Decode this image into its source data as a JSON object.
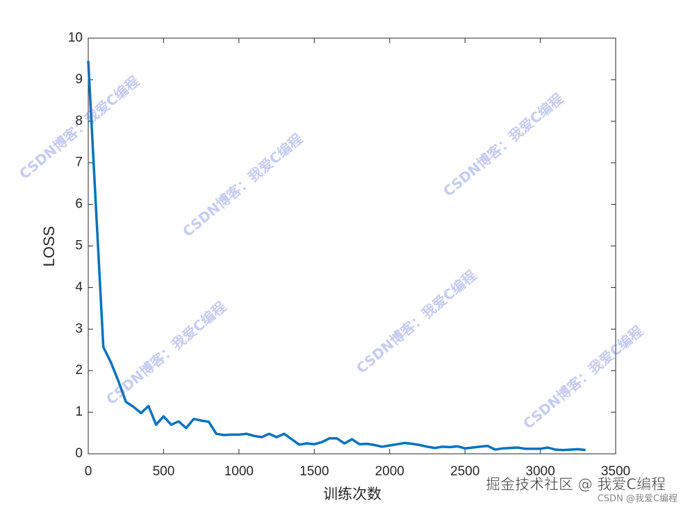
{
  "chart_data": {
    "type": "line",
    "xlabel": "训练次数",
    "ylabel": "LOSS",
    "x": [
      0,
      100,
      150,
      200,
      250,
      300,
      350,
      400,
      450,
      500,
      550,
      600,
      650,
      700,
      750,
      800,
      850,
      900,
      950,
      1000,
      1050,
      1100,
      1150,
      1200,
      1250,
      1300,
      1350,
      1400,
      1450,
      1500,
      1550,
      1600,
      1650,
      1700,
      1750,
      1800,
      1850,
      1900,
      1950,
      2000,
      2050,
      2100,
      2150,
      2200,
      2250,
      2300,
      2350,
      2400,
      2450,
      2500,
      2550,
      2600,
      2650,
      2700,
      2750,
      2800,
      2850,
      2900,
      2950,
      3000,
      3050,
      3100,
      3150,
      3200,
      3250,
      3300
    ],
    "values": [
      9.45,
      2.57,
      2.2,
      1.75,
      1.25,
      1.13,
      0.98,
      1.15,
      0.7,
      0.9,
      0.7,
      0.78,
      0.62,
      0.84,
      0.8,
      0.77,
      0.48,
      0.45,
      0.46,
      0.46,
      0.48,
      0.43,
      0.4,
      0.48,
      0.4,
      0.48,
      0.35,
      0.22,
      0.25,
      0.23,
      0.28,
      0.37,
      0.37,
      0.25,
      0.35,
      0.23,
      0.24,
      0.21,
      0.17,
      0.2,
      0.23,
      0.26,
      0.24,
      0.21,
      0.17,
      0.14,
      0.17,
      0.16,
      0.18,
      0.13,
      0.15,
      0.17,
      0.19,
      0.1,
      0.13,
      0.14,
      0.15,
      0.12,
      0.12,
      0.12,
      0.15,
      0.1,
      0.09,
      0.1,
      0.11,
      0.09
    ],
    "color": "#0072bd",
    "xlim": [
      0,
      3500
    ],
    "xticks": [
      0,
      500,
      1000,
      1500,
      2000,
      2500,
      3000,
      3500
    ],
    "ylim": [
      0,
      10
    ],
    "yticks": [
      0,
      1,
      2,
      3,
      4,
      5,
      6,
      7,
      8,
      9,
      10
    ],
    "grid": false,
    "watermarks": [
      "CSDN博客：我爱C编程",
      "掘金技术社区 @ 我爱C编程",
      "CSDN @我爱C编程"
    ]
  }
}
